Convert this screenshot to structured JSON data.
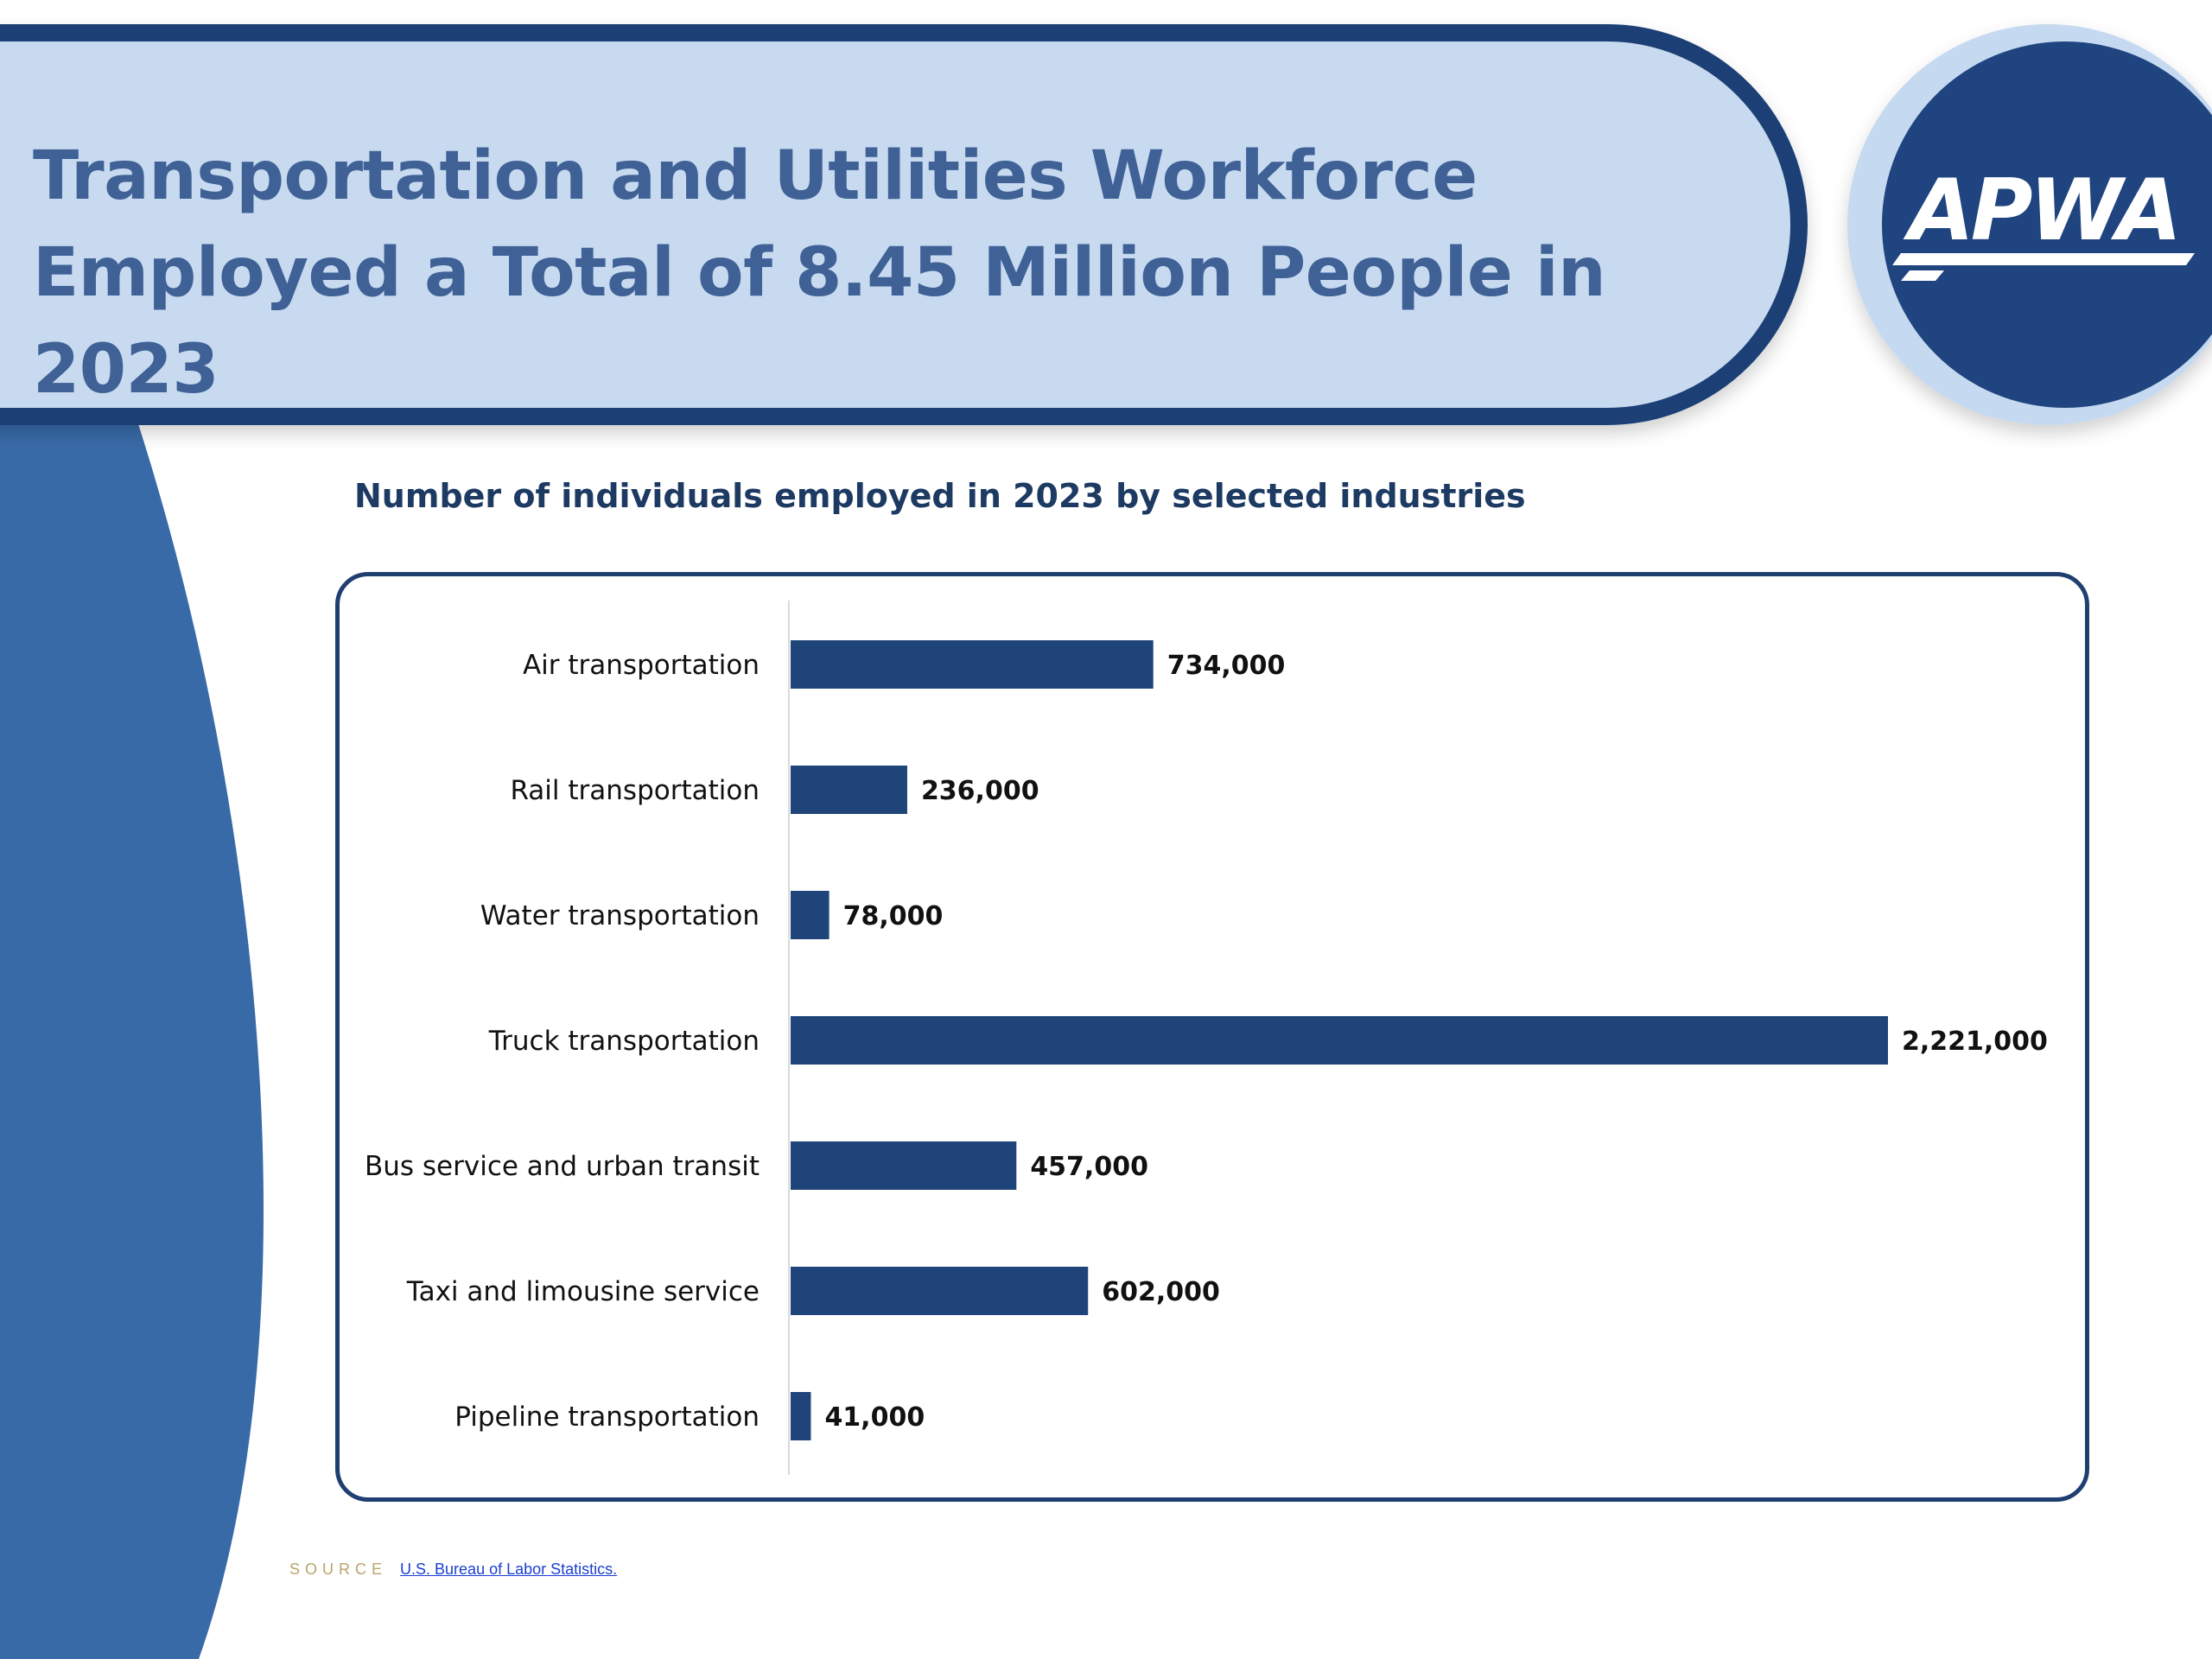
{
  "header": {
    "title_line1": "Transportation and Utilities Workforce",
    "title_line2": "Employed a Total of 8.45 Million People in 2023",
    "logo_text": "APWA"
  },
  "colors": {
    "header_band": "#c7daf0",
    "header_border": "#1f4075",
    "side_panel": "#386aa8",
    "logo_bg": "#1f4480",
    "bar": "#1f4479",
    "title_text": "#3f6196"
  },
  "chart_data": {
    "type": "bar",
    "orientation": "horizontal",
    "title": "Number of individuals employed in 2023 by selected industries",
    "categories": [
      "Air transportation",
      "Rail transportation",
      "Water transportation",
      "Truck transportation",
      "Bus service and urban transit",
      "Taxi and limousine service",
      "Pipeline transportation"
    ],
    "values": [
      734000,
      236000,
      78000,
      2221000,
      457000,
      602000,
      41000
    ],
    "value_labels": [
      "734,000",
      "236,000",
      "78,000",
      "2,221,000",
      "457,000",
      "602,000",
      "41,000"
    ],
    "xlim": [
      0,
      2221000
    ],
    "grid": false,
    "legend": "none"
  },
  "source": {
    "label": "SOURCE",
    "link_text": "U.S. Bureau of Labor Statistics."
  }
}
